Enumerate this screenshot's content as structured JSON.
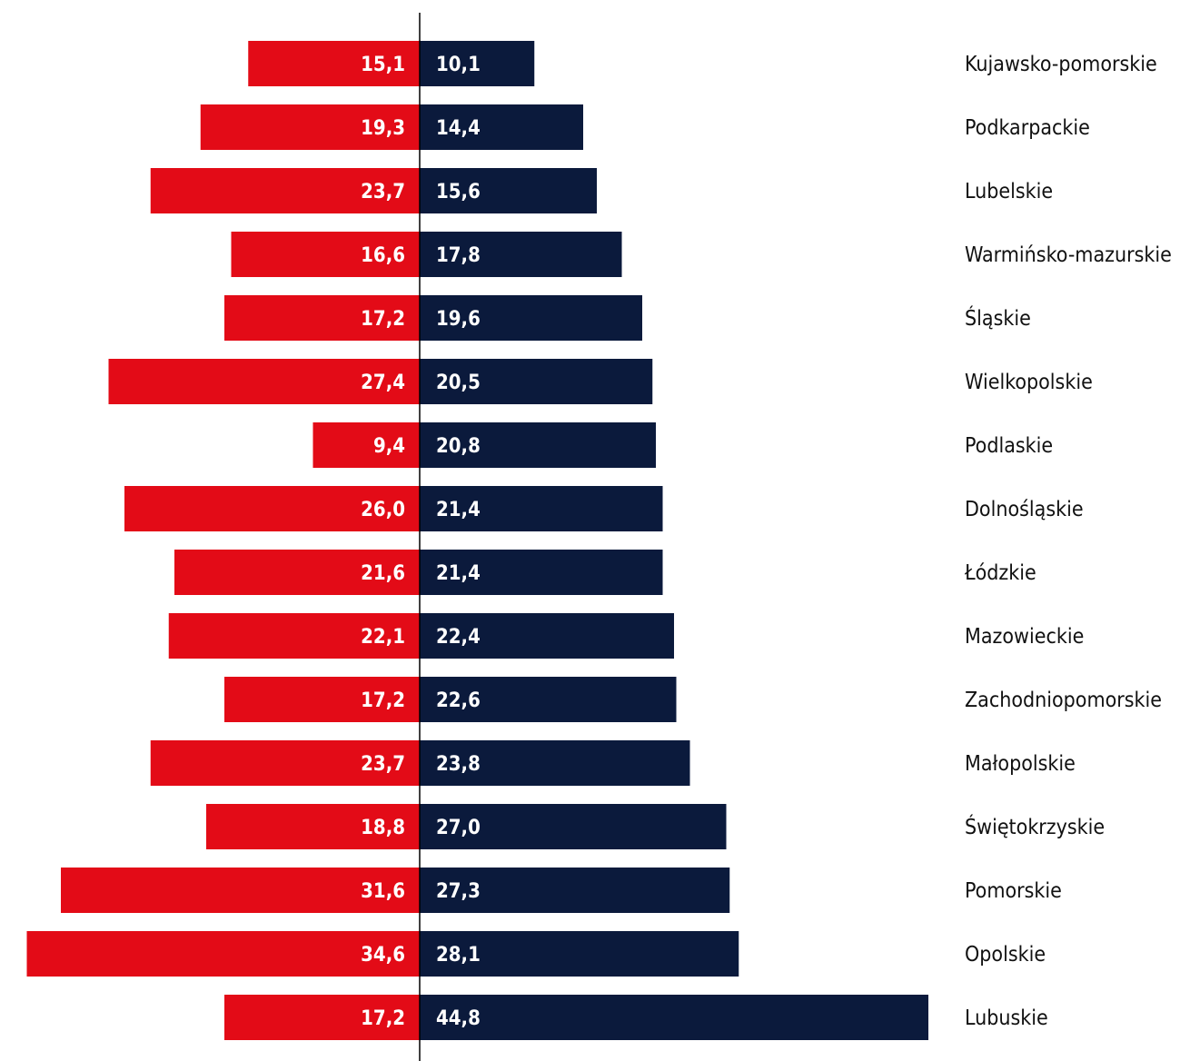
{
  "chart_data": {
    "type": "bar",
    "orientation": "horizontal-diverging",
    "title": "",
    "xlabel": "",
    "ylabel": "",
    "grid": false,
    "legend": "none",
    "categories": [
      "Kujawsko-pomorskie",
      "Podkarpackie",
      "Lubelskie",
      "Warmińsko-mazurskie",
      "Śląskie",
      "Wielkopolskie",
      "Podlaskie",
      "Dolnośląskie",
      "Łódzkie",
      "Mazowieckie",
      "Zachodniopomorskie",
      "Małopolskie",
      "Świętokrzyskie",
      "Pomorskie",
      "Opolskie",
      "Lubuskie"
    ],
    "series": [
      {
        "side": "left",
        "color": "#e30b17",
        "values": [
          15.1,
          19.3,
          23.7,
          16.6,
          17.2,
          27.4,
          9.4,
          26.0,
          21.6,
          22.1,
          17.2,
          23.7,
          18.8,
          31.6,
          34.6,
          17.2
        ],
        "labels": [
          "15,1",
          "19,3",
          "23,7",
          "16,6",
          "17,2",
          "27,4",
          "9,4",
          "26,0",
          "21,6",
          "22,1",
          "17,2",
          "23,7",
          "18,8",
          "31,6",
          "34,6",
          "17,2"
        ]
      },
      {
        "side": "right",
        "color": "#0b1a3c",
        "values": [
          10.1,
          14.4,
          15.6,
          17.8,
          19.6,
          20.5,
          20.8,
          21.4,
          21.4,
          22.4,
          22.6,
          23.8,
          27.0,
          27.3,
          28.1,
          44.8
        ],
        "labels": [
          "10,1",
          "14,4",
          "15,6",
          "17,8",
          "19,6",
          "20,5",
          "20,8",
          "21,4",
          "21,4",
          "22,4",
          "22,6",
          "23,8",
          "27,0",
          "27,3",
          "28,1",
          "44,8"
        ]
      }
    ],
    "axis_line_color": "#000000"
  }
}
